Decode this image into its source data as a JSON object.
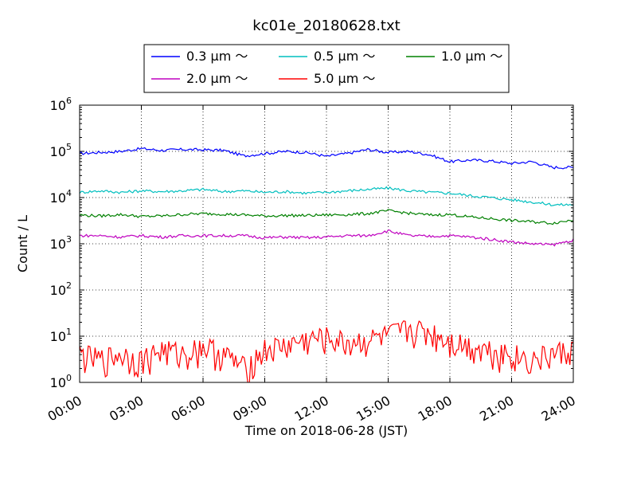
{
  "chart_data": {
    "type": "line",
    "title": "kc01e_20180628.txt",
    "xlabel": "Time on 2018-06-28 (JST)",
    "ylabel": "Count / L",
    "yscale": "log",
    "ylim": [
      1,
      1000000
    ],
    "xlim": [
      "00:00",
      "24:00"
    ],
    "grid": true,
    "legend_position": "top-center",
    "x_ticks": [
      "00:00",
      "03:00",
      "06:00",
      "09:00",
      "12:00",
      "15:00",
      "18:00",
      "21:00",
      "24:00"
    ],
    "y_ticks": [
      {
        "value": 1,
        "base": "10",
        "exp": "0"
      },
      {
        "value": 10,
        "base": "10",
        "exp": "1"
      },
      {
        "value": 100,
        "base": "10",
        "exp": "2"
      },
      {
        "value": 1000,
        "base": "10",
        "exp": "3"
      },
      {
        "value": 10000,
        "base": "10",
        "exp": "4"
      },
      {
        "value": 100000,
        "base": "10",
        "exp": "5"
      },
      {
        "value": 1000000,
        "base": "10",
        "exp": "6"
      }
    ],
    "x_hours": [
      0,
      1,
      2,
      3,
      4,
      5,
      6,
      7,
      8,
      9,
      10,
      11,
      12,
      13,
      14,
      15,
      16,
      17,
      18,
      19,
      20,
      21,
      22,
      23,
      24
    ],
    "series": [
      {
        "name": "0.3 μm ～",
        "color": "#0000ff",
        "values": [
          90000,
          95000,
          100000,
          115000,
          105000,
          110000,
          108000,
          105000,
          80000,
          90000,
          100000,
          95000,
          78000,
          90000,
          110000,
          95000,
          100000,
          85000,
          60000,
          65000,
          62000,
          55000,
          60000,
          45000,
          45000
        ]
      },
      {
        "name": "0.5 μm ～",
        "color": "#00bfbf",
        "values": [
          13000,
          14000,
          13000,
          14000,
          13500,
          14000,
          15000,
          13500,
          14000,
          13000,
          13500,
          12500,
          13000,
          14000,
          15000,
          16000,
          14000,
          13000,
          12500,
          11000,
          10000,
          9000,
          8000,
          7000,
          7000
        ]
      },
      {
        "name": "1.0 μm ～",
        "color": "#008000",
        "values": [
          4200,
          4000,
          4300,
          3900,
          4000,
          4300,
          4500,
          4400,
          4200,
          4000,
          4100,
          4100,
          4200,
          4300,
          4500,
          5200,
          4600,
          4200,
          4300,
          3800,
          3500,
          3200,
          3000,
          2800,
          3300
        ]
      },
      {
        "name": "2.0 μm ～",
        "color": "#bf00bf",
        "values": [
          1500,
          1500,
          1400,
          1500,
          1400,
          1500,
          1500,
          1500,
          1500,
          1350,
          1400,
          1350,
          1400,
          1500,
          1500,
          1900,
          1500,
          1450,
          1500,
          1400,
          1250,
          1100,
          1000,
          950,
          1200
        ]
      },
      {
        "name": "5.0 μm ～",
        "color": "#ff0000",
        "values": [
          4,
          3,
          4,
          3,
          5,
          4,
          6,
          4,
          2,
          5,
          6,
          8,
          9,
          7,
          8,
          10,
          14,
          12,
          8,
          6,
          5,
          4,
          3,
          4,
          5
        ]
      }
    ]
  }
}
